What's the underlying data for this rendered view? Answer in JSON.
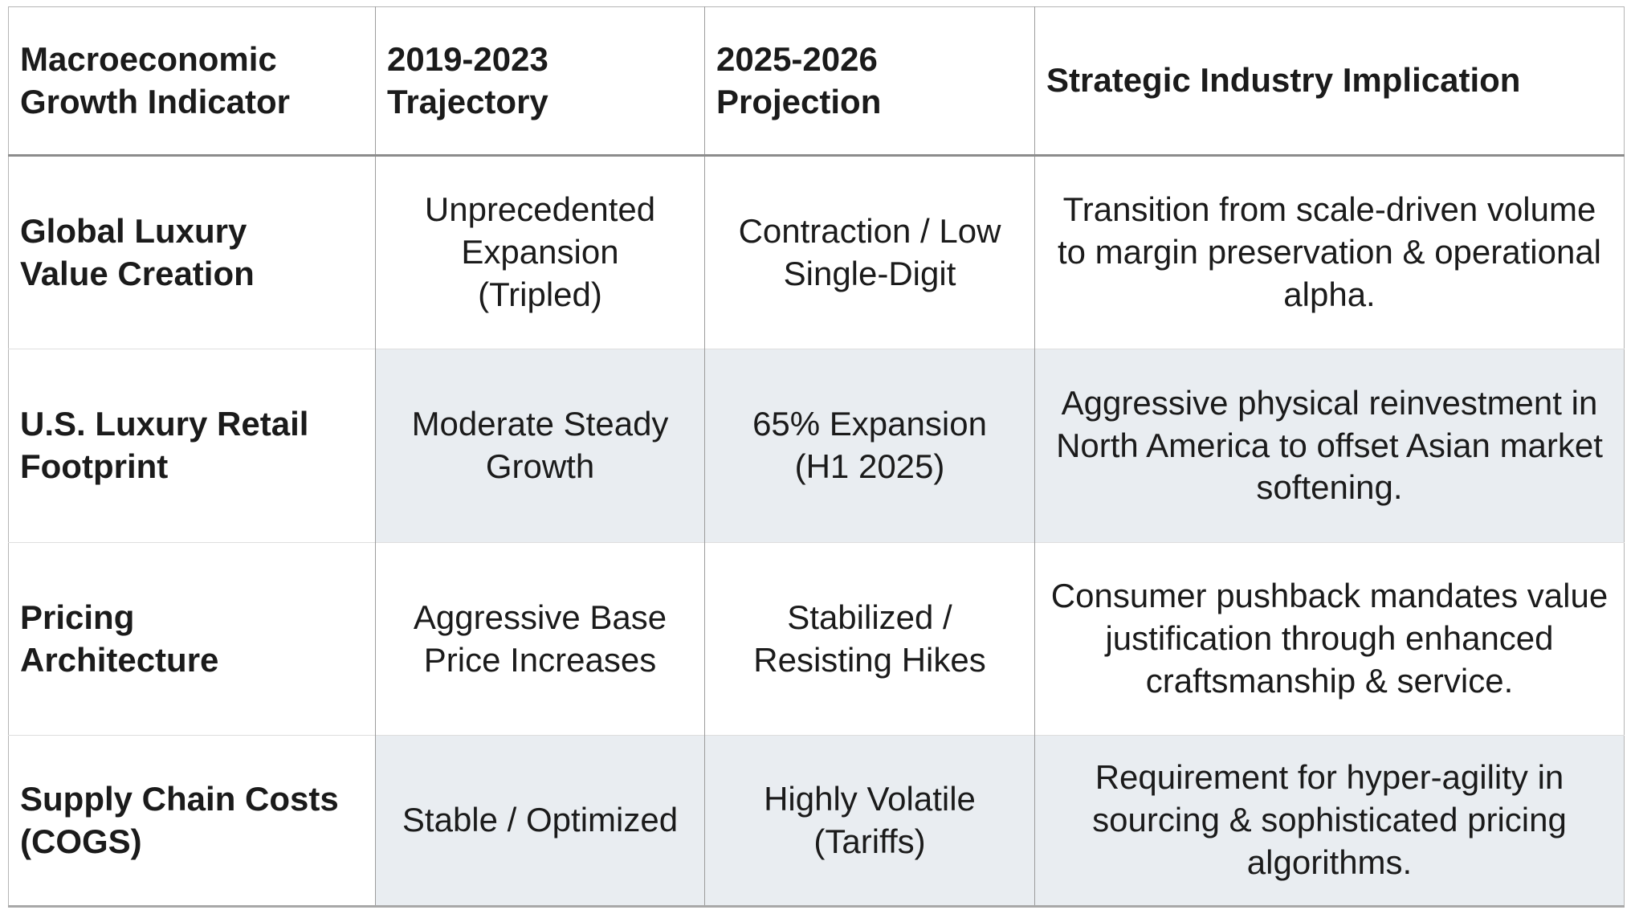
{
  "table": {
    "headers": {
      "indicator": "Macroeconomic\nGrowth Indicator",
      "trajectory": "2019-2023\nTrajectory",
      "projection": "2025-2026\nProjection",
      "implication": "Strategic Industry Implication"
    },
    "rows": [
      {
        "indicator": "Global Luxury\nValue Creation",
        "trajectory": "Unprecedented\nExpansion\n(Tripled)",
        "projection": "Contraction / Low\nSingle-Digit",
        "implication": "Transition from scale-driven volume\nto margin preservation & operational\nalpha."
      },
      {
        "indicator": "U.S. Luxury Retail\nFootprint",
        "trajectory": "Moderate Steady\nGrowth",
        "projection": "65% Expansion\n(H1 2025)",
        "implication": "Aggressive physical reinvestment in\nNorth America to offset Asian market\nsoftening."
      },
      {
        "indicator": "Pricing\nArchitecture",
        "trajectory": "Aggressive Base\nPrice Increases",
        "projection": "Stabilized /\nResisting Hikes",
        "implication": "Consumer pushback mandates value\njustification through enhanced\ncraftsmanship & service."
      },
      {
        "indicator": "Supply Chain Costs\n(COGS)",
        "trajectory": "Stable / Optimized",
        "projection": "Highly Volatile\n(Tariffs)",
        "implication": "Requirement for hyper-agility in\nsourcing & sophisticated pricing\nalgorithms."
      }
    ]
  },
  "colors": {
    "background": "#ffffff",
    "text": "#1b1b1b",
    "row_stripe": "#e9edf1",
    "border_outer": "#b5b5b5",
    "border_column": "#9c9c9c",
    "border_header": "#8c8c8c",
    "border_row": "#dedede",
    "border_bottom": "#a8a8a8"
  }
}
